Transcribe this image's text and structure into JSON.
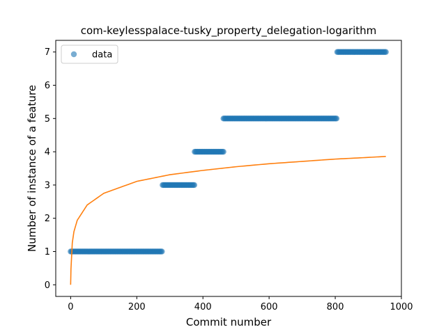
{
  "chart_data": {
    "type": "scatter",
    "title": "com-keylesspalace-tusky_property_delegation-logarithm",
    "xlabel": "Commit number",
    "ylabel": "Number of instance of a feature",
    "xlim": [
      -45,
      1000
    ],
    "ylim": [
      -0.35,
      7.35
    ],
    "xticks": [
      0,
      200,
      400,
      600,
      800,
      1000
    ],
    "yticks": [
      0,
      1,
      2,
      3,
      4,
      5,
      6,
      7
    ],
    "grid": false,
    "legend": {
      "placement": "top-left",
      "entries": [
        "data"
      ]
    },
    "colors": {
      "scatter": "#1f77b4",
      "fit": "#ff7f0e"
    },
    "series": [
      {
        "name": "data",
        "kind": "scatter",
        "segments": [
          {
            "x_start": 0,
            "x_end": 278,
            "y": 1
          },
          {
            "x_start": 278,
            "x_end": 375,
            "y": 3
          },
          {
            "x_start": 375,
            "x_end": 462,
            "y": 4
          },
          {
            "x_start": 462,
            "x_end": 806,
            "y": 5
          },
          {
            "x_start": 806,
            "x_end": 953,
            "y": 7
          }
        ],
        "step": 3
      },
      {
        "kind": "line",
        "function": "logarithmic fit",
        "points": [
          [
            0,
            0
          ],
          [
            1,
            0.47
          ],
          [
            5,
            1.26
          ],
          [
            10,
            1.6
          ],
          [
            20,
            1.94
          ],
          [
            50,
            2.4
          ],
          [
            100,
            2.75
          ],
          [
            200,
            3.11
          ],
          [
            300,
            3.31
          ],
          [
            400,
            3.44
          ],
          [
            500,
            3.55
          ],
          [
            600,
            3.64
          ],
          [
            700,
            3.71
          ],
          [
            800,
            3.78
          ],
          [
            900,
            3.83
          ],
          [
            953,
            3.86
          ]
        ]
      }
    ]
  }
}
